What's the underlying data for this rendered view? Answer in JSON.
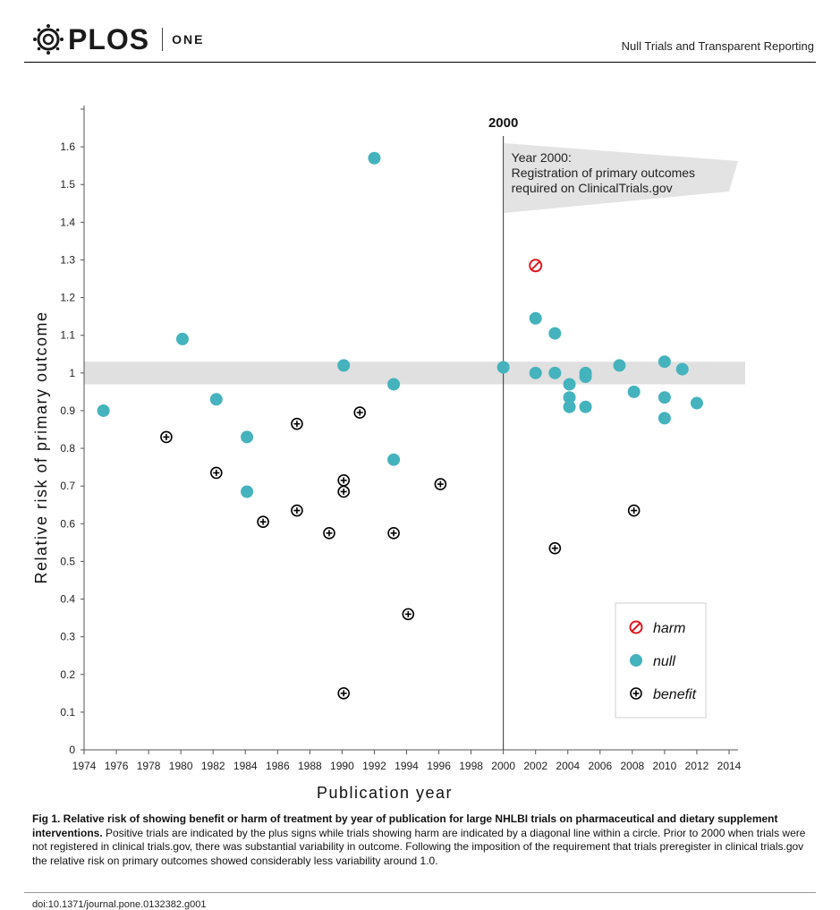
{
  "header": {
    "logo_text": "PLOS",
    "logo_sub": "ONE",
    "running_title": "Null Trials and Transparent Reporting"
  },
  "chart_data": {
    "type": "scatter",
    "xlabel": "Publication year",
    "ylabel": "Relative risk of primary outcome",
    "xlim": [
      1974,
      2014
    ],
    "ylim": [
      0,
      1.7
    ],
    "xticks": [
      "1974",
      "1976",
      "1978",
      "1980",
      "1982",
      "1984",
      "1986",
      "1988",
      "1990",
      "1992",
      "1994",
      "1996",
      "1998",
      "2000",
      "2002",
      "2004",
      "2006",
      "2008",
      "2010",
      "2012",
      "2014"
    ],
    "yticks": [
      "0",
      "0.1",
      "0.2",
      "0.3",
      "0.4",
      "0.5",
      "0.6",
      "0.7",
      "0.8",
      "0.9",
      "1",
      "1.1",
      "1.2",
      "1.3",
      "1.4",
      "1.5",
      "1.6"
    ],
    "null_band": [
      0.97,
      1.03
    ],
    "vline": {
      "x": 2000,
      "label": "2000"
    },
    "banner": [
      "Year 2000:",
      "Registration of primary outcomes",
      "required on ClinicalTrials.gov"
    ],
    "legend": {
      "position": "bottom-right",
      "entries": [
        "harm",
        "null",
        "benefit"
      ]
    },
    "colors": {
      "null": "#45b3bd",
      "harm": "#e0191e",
      "benefit": "#000000",
      "band": "#e0e0e0",
      "banner": "#e3e3e3"
    },
    "series": [
      {
        "name": "harm",
        "points": [
          [
            2002.0,
            1.285
          ]
        ]
      },
      {
        "name": "null",
        "points": [
          [
            1975.2,
            0.9
          ],
          [
            1980.1,
            1.09
          ],
          [
            1982.2,
            0.93
          ],
          [
            1984.1,
            0.83
          ],
          [
            1984.1,
            0.685
          ],
          [
            1990.1,
            1.02
          ],
          [
            1992.0,
            1.57
          ],
          [
            1993.2,
            0.97
          ],
          [
            1993.2,
            0.77
          ],
          [
            2000.0,
            1.015
          ],
          [
            2002.0,
            1.145
          ],
          [
            2002.0,
            1.0
          ],
          [
            2003.2,
            1.105
          ],
          [
            2003.2,
            1.0
          ],
          [
            2004.1,
            0.97
          ],
          [
            2004.1,
            0.935
          ],
          [
            2004.1,
            0.91
          ],
          [
            2005.1,
            1.0
          ],
          [
            2005.1,
            0.99
          ],
          [
            2005.1,
            0.91
          ],
          [
            2007.2,
            1.02
          ],
          [
            2008.1,
            0.95
          ],
          [
            2010.0,
            1.03
          ],
          [
            2010.0,
            0.935
          ],
          [
            2010.0,
            0.88
          ],
          [
            2011.1,
            1.01
          ],
          [
            2012.0,
            0.92
          ]
        ]
      },
      {
        "name": "benefit",
        "points": [
          [
            1979.1,
            0.83
          ],
          [
            1982.2,
            0.735
          ],
          [
            1985.1,
            0.605
          ],
          [
            1987.2,
            0.865
          ],
          [
            1987.2,
            0.635
          ],
          [
            1989.2,
            0.575
          ],
          [
            1990.1,
            0.715
          ],
          [
            1990.1,
            0.685
          ],
          [
            1990.1,
            0.15
          ],
          [
            1991.1,
            0.895
          ],
          [
            1993.2,
            0.575
          ],
          [
            1994.1,
            0.36
          ],
          [
            1996.1,
            0.705
          ],
          [
            2003.2,
            0.535
          ],
          [
            2008.1,
            0.635
          ]
        ]
      }
    ]
  },
  "caption": {
    "bold": "Fig 1. Relative risk of showing benefit or harm of treatment by year of publication for large NHLBI trials on pharmaceutical and dietary supplement interventions.",
    "text": " Positive trials are indicated by the plus signs while trials showing harm are indicated by a diagonal line within a circle. Prior to 2000 when trials were not registered in clinical trials.gov, there was substantial variability in outcome. Following the imposition of the requirement that trials preregister in clinical trials.gov the relative risk on primary outcomes showed considerably less variability around 1.0."
  },
  "doi": "doi:10.1371/journal.pone.0132382.g001"
}
